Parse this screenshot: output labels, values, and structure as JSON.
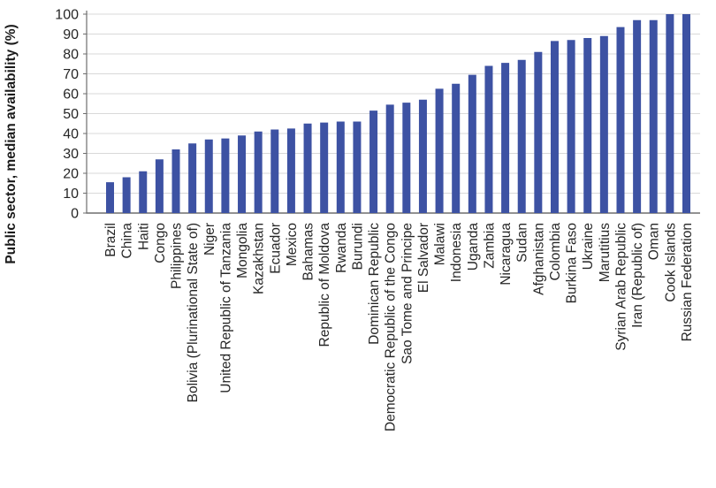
{
  "chart_data": {
    "type": "bar",
    "title": "",
    "ylabel": "Public sector, median availability (%)",
    "xlabel": "",
    "ylim": [
      0,
      100
    ],
    "ytick_step": 10,
    "grid": true,
    "legend": false,
    "gridlines": "horizontal",
    "bar_color": "#3d52a3",
    "gridline_color": "#d9d9d9",
    "axis_color": "#6e6e6e",
    "text_color": "#262626",
    "title_color": "#1a1a1a",
    "categories": [
      "Brazil",
      "China",
      "Haiti",
      "Congo",
      "Philippines",
      "Bolivia (Plurinational State of)",
      "Niger",
      "United Republic of Tanzania",
      "Mongolia",
      "Kazakhstan",
      "Ecuador",
      "Mexico",
      "Bahamas",
      "Republic of Moldova",
      "Rwanda",
      "Burundi",
      "Dominican Republic",
      "Democratic Republic of the Congo",
      "Sao Tome and Principe",
      "El Salvador",
      "Malawi",
      "Indonesia",
      "Uganda",
      "Zambia",
      "Nicaragua",
      "Sudan",
      "Afghanistan",
      "Colombia",
      "Burkina Faso",
      "Ukraine",
      "Marutitius",
      "Syrian Arab Republic",
      "Iran (Republic of)",
      "Oman",
      "Cook Islands",
      "Russian Federation"
    ],
    "values": [
      15.5,
      18,
      21,
      27,
      32,
      35,
      37,
      37.5,
      39,
      41,
      42,
      42.5,
      45,
      45.5,
      46,
      46,
      51.5,
      54.5,
      55.5,
      57,
      62.5,
      65,
      69.5,
      74,
      75.5,
      77,
      81,
      86.5,
      87,
      88,
      89,
      93.5,
      97,
      97,
      100,
      100
    ],
    "yticks": [
      0,
      10,
      20,
      30,
      40,
      50,
      60,
      70,
      80,
      90,
      100
    ]
  }
}
